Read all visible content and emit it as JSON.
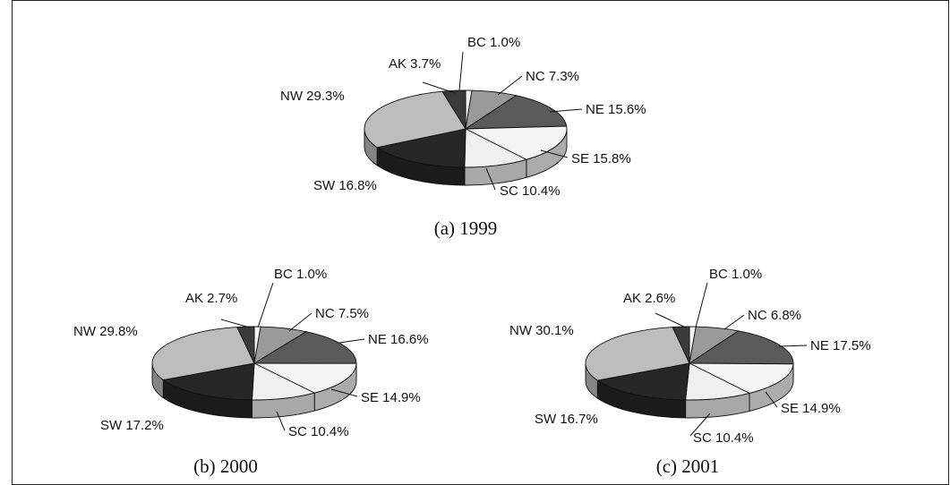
{
  "chart_data": [
    {
      "type": "pie",
      "caption": "(a) 1999",
      "slices": [
        {
          "name": "BC",
          "value": 1.0,
          "label": "BC 1.0%",
          "color": "#f2f2f2"
        },
        {
          "name": "NC",
          "value": 7.3,
          "label": "NC 7.3%",
          "color": "#9a9a9a"
        },
        {
          "name": "NE",
          "value": 15.6,
          "label": "NE 15.6%",
          "color": "#5a5a5a"
        },
        {
          "name": "SE",
          "value": 15.8,
          "label": "SE 15.8%",
          "color": "#f4f4f4"
        },
        {
          "name": "SC",
          "value": 10.4,
          "label": "SC 10.4%",
          "color": "#f0f0f0"
        },
        {
          "name": "SW",
          "value": 16.8,
          "label": "SW 16.8%",
          "color": "#262626"
        },
        {
          "name": "NW",
          "value": 29.3,
          "label": "NW 29.3%",
          "color": "#bdbdbd"
        },
        {
          "name": "AK",
          "value": 3.7,
          "label": "AK 3.7%",
          "color": "#3a3a3a"
        }
      ]
    },
    {
      "type": "pie",
      "caption": "(b) 2000",
      "slices": [
        {
          "name": "BC",
          "value": 1.0,
          "label": "BC 1.0%",
          "color": "#f2f2f2"
        },
        {
          "name": "NC",
          "value": 7.5,
          "label": "NC 7.5%",
          "color": "#9a9a9a"
        },
        {
          "name": "NE",
          "value": 16.6,
          "label": "NE 16.6%",
          "color": "#5a5a5a"
        },
        {
          "name": "SE",
          "value": 14.9,
          "label": "SE 14.9%",
          "color": "#f4f4f4"
        },
        {
          "name": "SC",
          "value": 10.4,
          "label": "SC 10.4%",
          "color": "#f0f0f0"
        },
        {
          "name": "SW",
          "value": 17.2,
          "label": "SW 17.2%",
          "color": "#262626"
        },
        {
          "name": "NW",
          "value": 29.8,
          "label": "NW 29.8%",
          "color": "#bdbdbd"
        },
        {
          "name": "AK",
          "value": 2.7,
          "label": "AK 2.7%",
          "color": "#3a3a3a"
        }
      ]
    },
    {
      "type": "pie",
      "caption": "(c) 2001",
      "slices": [
        {
          "name": "BC",
          "value": 1.0,
          "label": "BC 1.0%",
          "color": "#f2f2f2"
        },
        {
          "name": "NC",
          "value": 6.8,
          "label": "NC 6.8%",
          "color": "#9a9a9a"
        },
        {
          "name": "NE",
          "value": 17.5,
          "label": "NE 17.5%",
          "color": "#5a5a5a"
        },
        {
          "name": "SE",
          "value": 14.9,
          "label": "SE 14.9%",
          "color": "#f4f4f4"
        },
        {
          "name": "SC",
          "value": 10.4,
          "label": "SC 10.4%",
          "color": "#f0f0f0"
        },
        {
          "name": "SW",
          "value": 16.7,
          "label": "SW 16.7%",
          "color": "#262626"
        },
        {
          "name": "NW",
          "value": 30.1,
          "label": "NW 30.1%",
          "color": "#bdbdbd"
        },
        {
          "name": "AK",
          "value": 2.6,
          "label": "AK 2.6%",
          "color": "#3a3a3a"
        }
      ]
    }
  ]
}
